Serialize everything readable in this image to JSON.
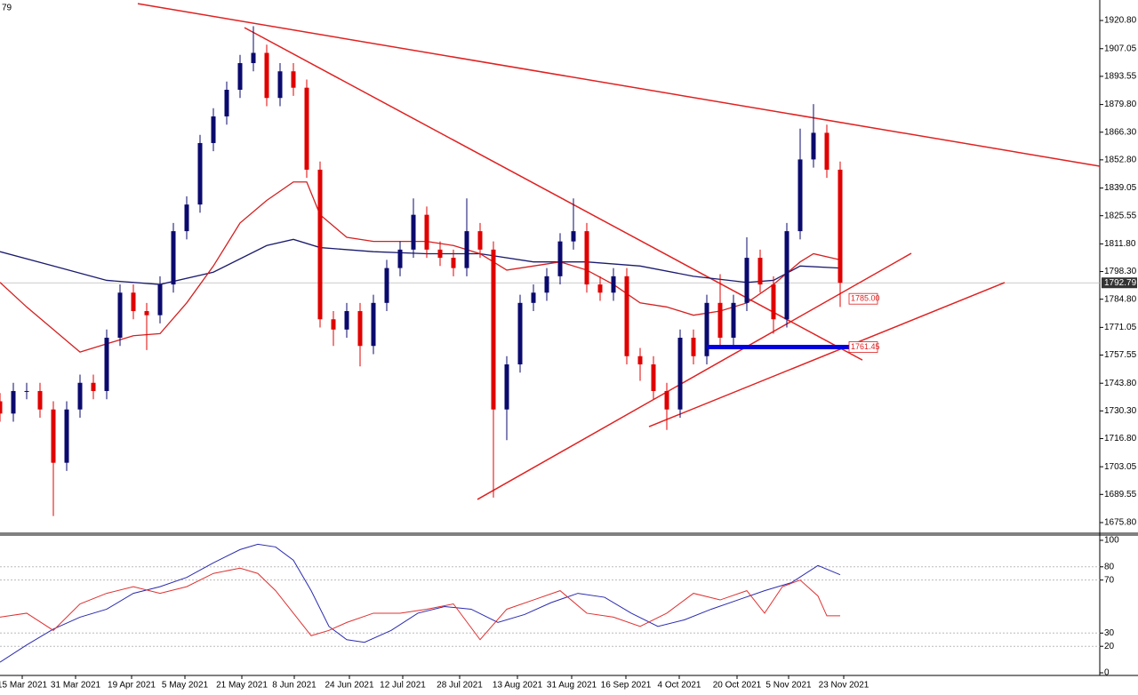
{
  "header_fragment": "79",
  "chart_data": [
    {
      "type": "candlestick",
      "xlim": [
        0,
        247.4
      ],
      "ylim": [
        1670.6,
        1930.8
      ],
      "xticks": [
        {
          "value": 5,
          "label": "15 Mar 2021"
        },
        {
          "value": 17,
          "label": "31 Mar 2021"
        },
        {
          "value": 29.6,
          "label": "19 Apr 2021"
        },
        {
          "value": 41.6,
          "label": "5 May 2021"
        },
        {
          "value": 54.4,
          "label": "21 May 2021"
        },
        {
          "value": 66.2,
          "label": "8 Jun 2021"
        },
        {
          "value": 78.6,
          "label": "24 Jun 2021"
        },
        {
          "value": 90.6,
          "label": "12 Jul 2021"
        },
        {
          "value": 103.4,
          "label": "28 Jul 2021"
        },
        {
          "value": 116.4,
          "label": "13 Aug 2021"
        },
        {
          "value": 128.6,
          "label": "31 Aug 2021"
        },
        {
          "value": 140.8,
          "label": "16 Sep 2021"
        },
        {
          "value": 152.8,
          "label": "4 Oct 2021"
        },
        {
          "value": 165.8,
          "label": "20 Oct 2021"
        },
        {
          "value": 177.4,
          "label": "5 Nov 2021"
        },
        {
          "value": 189.8,
          "label": "23 Nov 2021"
        }
      ],
      "yticks": [
        {
          "value": 1920.8,
          "label": "1920.80"
        },
        1907.05,
        1893.55,
        {
          "value": 1879.8,
          "label": "1879.80"
        },
        {
          "value": 1866.3,
          "label": "1866.30"
        },
        {
          "value": 1852.8,
          "label": "1852.80"
        },
        1839.05,
        1825.55,
        {
          "value": 1811.8,
          "label": "1811.80"
        },
        {
          "value": 1798.3,
          "label": "1798.30"
        },
        {
          "value": 1784.8,
          "label": "1784.80"
        },
        1771.05,
        1757.55,
        {
          "value": 1743.8,
          "label": "1743.80"
        },
        {
          "value": 1730.3,
          "label": "1730.30"
        },
        {
          "value": 1716.8,
          "label": "1716.80"
        },
        1703.05,
        1689.55,
        {
          "value": 1675.8,
          "label": "1675.80"
        }
      ],
      "up_color": "#0a0a6e",
      "down_color": "#e00000",
      "x": [
        0,
        3,
        6,
        9,
        12,
        15,
        18,
        21,
        24,
        27,
        30,
        33,
        36,
        39,
        42,
        45,
        48,
        51,
        54,
        57,
        60,
        63,
        66,
        69,
        72,
        75,
        78,
        81,
        84,
        87,
        90,
        93,
        96,
        99,
        102,
        105,
        108,
        111,
        114,
        117,
        120,
        123,
        126,
        129,
        132,
        135,
        138,
        141,
        144,
        147,
        150,
        153,
        156,
        159,
        162,
        165,
        168,
        171,
        174,
        177,
        180,
        183,
        186,
        189
      ],
      "open": [
        1735,
        1729,
        1740,
        1740,
        1731,
        1705,
        1731,
        1744,
        1740,
        1766,
        1788,
        1779,
        1777,
        1792,
        1818,
        1831,
        1861,
        1874,
        1887,
        1900,
        1905,
        1883,
        1896,
        1888,
        1848,
        1775,
        1770,
        1779,
        1762,
        1783,
        1800,
        1809,
        1826,
        1809,
        1805,
        1800,
        1818,
        1809,
        1731,
        1753,
        1783,
        1788,
        1796,
        1813,
        1818,
        1792,
        1788,
        1796,
        1757,
        1753,
        1740,
        1731,
        1766,
        1757,
        1783,
        1766,
        1783,
        1805,
        1792,
        1775,
        1818,
        1853,
        1866,
        1848
      ],
      "high": [
        1739,
        1744,
        1744,
        1744,
        1735,
        1735,
        1748,
        1748,
        1770,
        1792,
        1792,
        1783,
        1796,
        1822,
        1835,
        1865,
        1878,
        1891,
        1904,
        1918,
        1909,
        1900,
        1900,
        1892,
        1852,
        1779,
        1783,
        1783,
        1787,
        1804,
        1813,
        1834,
        1830,
        1813,
        1809,
        1834,
        1822,
        1813,
        1757,
        1787,
        1792,
        1800,
        1817,
        1834,
        1822,
        1796,
        1800,
        1800,
        1761,
        1757,
        1744,
        1770,
        1770,
        1787,
        1797,
        1787,
        1815,
        1809,
        1796,
        1822,
        1868,
        1880,
        1870,
        1852
      ],
      "low": [
        1725,
        1725,
        1736,
        1727,
        1679,
        1701,
        1727,
        1736,
        1736,
        1762,
        1775,
        1760,
        1773,
        1788,
        1814,
        1827,
        1857,
        1870,
        1883,
        1896,
        1879,
        1879,
        1884,
        1844,
        1771,
        1762,
        1766,
        1752,
        1758,
        1779,
        1796,
        1805,
        1805,
        1801,
        1796,
        1796,
        1805,
        1688,
        1716,
        1749,
        1779,
        1784,
        1792,
        1809,
        1788,
        1784,
        1784,
        1753,
        1745,
        1736,
        1721,
        1727,
        1753,
        1753,
        1762,
        1762,
        1779,
        1788,
        1768,
        1771,
        1814,
        1849,
        1844,
        1781
      ],
      "close": [
        1729,
        1740,
        1740,
        1731,
        1705,
        1731,
        1744,
        1740,
        1766,
        1788,
        1779,
        1777,
        1792,
        1818,
        1831,
        1861,
        1874,
        1887,
        1900,
        1905,
        1883,
        1896,
        1888,
        1848,
        1775,
        1770,
        1779,
        1762,
        1783,
        1800,
        1809,
        1826,
        1809,
        1805,
        1800,
        1818,
        1809,
        1731,
        1753,
        1783,
        1788,
        1796,
        1813,
        1818,
        1792,
        1788,
        1796,
        1757,
        1753,
        1740,
        1731,
        1766,
        1757,
        1783,
        1766,
        1783,
        1805,
        1792,
        1775,
        1818,
        1853,
        1866,
        1848,
        1792.79
      ],
      "series": [
        {
          "color": "#1a1a6e",
          "x": [
            0,
            12,
            24,
            36,
            48,
            60,
            66,
            72,
            84,
            96,
            108,
            120,
            132,
            144,
            156,
            168,
            174,
            180,
            189
          ],
          "values": [
            1808,
            1801,
            1794,
            1792,
            1798,
            1811,
            1814,
            1810,
            1808,
            1807,
            1807,
            1803,
            1803,
            1801,
            1796,
            1793,
            1794,
            1801,
            1800
          ]
        },
        {
          "color": "#d42020",
          "x": [
            0,
            6,
            12,
            18,
            24,
            30,
            36,
            42,
            48,
            54,
            60,
            66,
            69,
            72,
            78,
            84,
            96,
            102,
            108,
            114,
            120,
            126,
            132,
            138,
            144,
            150,
            156,
            162,
            168,
            174,
            180,
            183,
            189
          ],
          "values": [
            1793,
            1781,
            1770,
            1759,
            1763,
            1767,
            1768,
            1783,
            1801,
            1822,
            1833,
            1842,
            1842,
            1826,
            1815,
            1813,
            1813,
            1811,
            1807,
            1799,
            1801,
            1803,
            1799,
            1792,
            1783,
            1781,
            1777,
            1779,
            1783,
            1792,
            1803,
            1807,
            1804
          ]
        }
      ],
      "lines": [
        {
          "color": "#e02020",
          "x": [
            31,
            247.4
          ],
          "y": [
            1929,
            1849.7
          ]
        },
        {
          "color": "#e02020",
          "x": [
            55,
            194
          ],
          "y": [
            1917.3,
            1755.1
          ]
        },
        {
          "color": "#e02020",
          "x": [
            107.4,
            205
          ],
          "y": [
            1687.1,
            1807.2
          ]
        },
        {
          "color": "#e02020",
          "x": [
            146,
            226
          ],
          "y": [
            1722.6,
            1792.9
          ]
        }
      ],
      "level": {
        "value": 1761.45,
        "x": [
          159,
          191
        ],
        "color": "#0000e0"
      },
      "price_labels": [
        {
          "value": 1785,
          "label": "1785.00",
          "x": 191
        },
        {
          "value": 1761.45,
          "x": 191
        }
      ],
      "last_price": 1792.79
    },
    {
      "type": "line",
      "xlim": [
        0,
        247.4
      ],
      "ylim": [
        -2,
        104
      ],
      "yticks": [
        0,
        20,
        30,
        70,
        80,
        100
      ],
      "series": [
        {
          "color": "#2a2ab0",
          "x": [
            0,
            6,
            12,
            18,
            24,
            30,
            36,
            42,
            48,
            54,
            58,
            62,
            66,
            70,
            74,
            78,
            82,
            88,
            94,
            100,
            106,
            112,
            118,
            124,
            130,
            136,
            142,
            148,
            154,
            160,
            166,
            172,
            178,
            184,
            189
          ],
          "values": [
            8,
            21,
            33,
            42,
            48,
            60,
            65,
            72,
            83,
            93,
            97,
            95,
            85,
            62,
            35,
            25,
            23,
            32,
            45,
            50,
            48,
            38,
            44,
            53,
            60,
            57,
            45,
            35,
            40,
            48,
            55,
            62,
            68,
            81,
            74
          ]
        },
        {
          "color": "#e03030",
          "x": [
            0,
            6,
            12,
            18,
            24,
            30,
            36,
            42,
            48,
            54,
            58,
            62,
            66,
            70,
            74,
            78,
            84,
            90,
            96,
            102,
            108,
            114,
            120,
            126,
            132,
            138,
            144,
            150,
            156,
            162,
            168,
            172,
            176,
            180,
            184,
            186,
            189
          ],
          "values": [
            42,
            45,
            32,
            52,
            60,
            65,
            60,
            65,
            75,
            79,
            75,
            62,
            45,
            28,
            32,
            38,
            45,
            45,
            48,
            52,
            25,
            48,
            55,
            62,
            45,
            42,
            35,
            45,
            60,
            55,
            62,
            45,
            65,
            70,
            58,
            43,
            43
          ]
        }
      ]
    }
  ]
}
